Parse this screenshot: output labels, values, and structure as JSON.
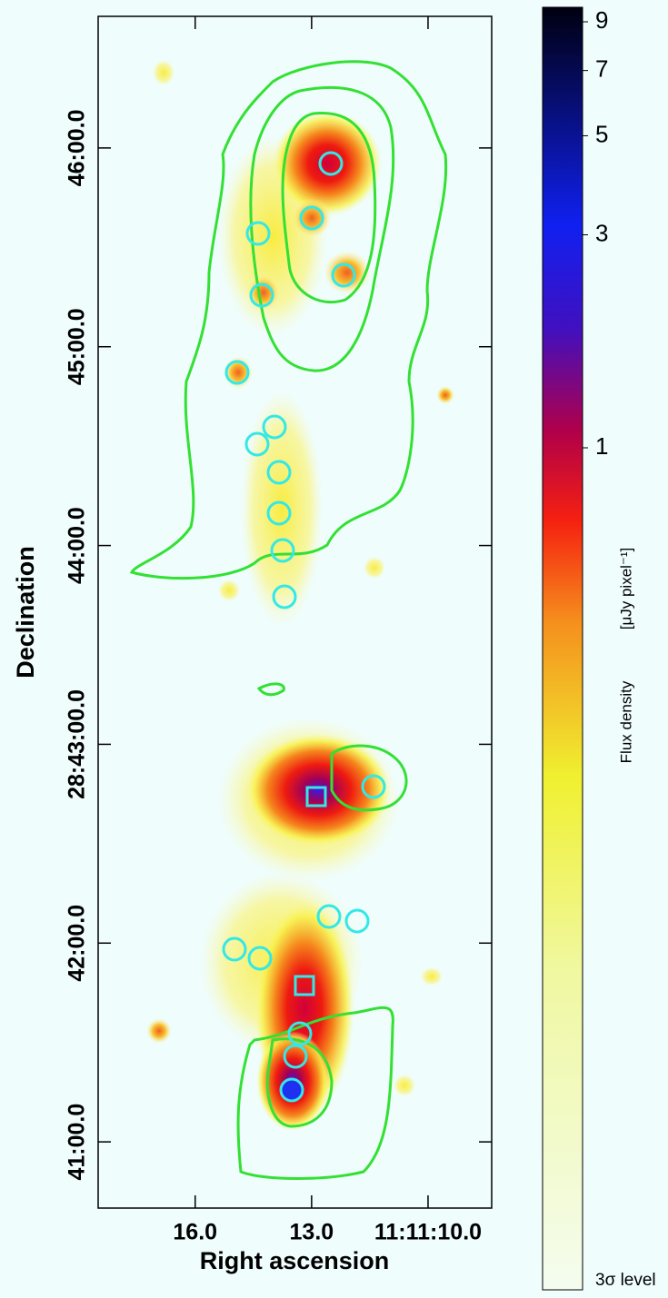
{
  "chart_data": {
    "type": "image",
    "xlabel": "Right ascension",
    "ylabel": "Declination",
    "xlim": [
      18.5,
      8.36
    ],
    "xticks": [
      {
        "value": 16,
        "label": "16.0"
      },
      {
        "value": 13,
        "label": "13.0"
      },
      {
        "value": 10,
        "label": "11:11:10.0"
      }
    ],
    "ylim": [
      40.667,
      46.662
    ],
    "yticks": [
      {
        "value": 46,
        "label": "46:00.0"
      },
      {
        "value": 45,
        "label": "45:00.0"
      },
      {
        "value": 44,
        "label": "44:00.0"
      },
      {
        "value": 43,
        "label": "28:43:00.0"
      },
      {
        "value": 42,
        "label": "42:00.0"
      },
      {
        "value": 41,
        "label": "41:00.0"
      }
    ],
    "colorbar": {
      "label": "Flux density",
      "unit": "[μJy pixel⁻¹]",
      "log": true,
      "clim": [
        0.013,
        9.7
      ],
      "ticks": [
        9,
        7,
        5,
        3,
        1
      ],
      "bottom_label": "3σ level"
    },
    "contour_color": "#33e033",
    "marker_color": "#33e8e8"
  }
}
